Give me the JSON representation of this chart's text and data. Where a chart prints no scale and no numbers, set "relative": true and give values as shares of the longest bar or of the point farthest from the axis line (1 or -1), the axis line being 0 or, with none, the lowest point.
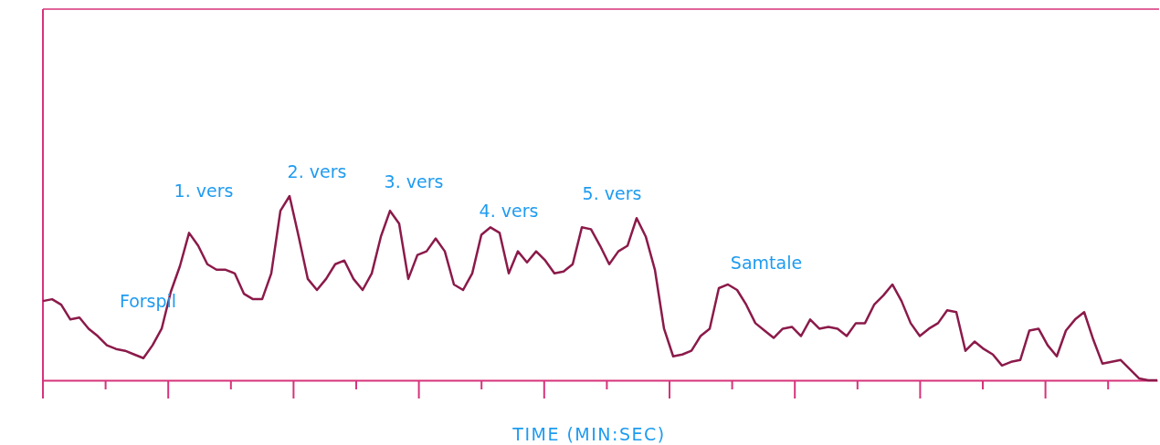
{
  "chart_data": {
    "type": "line",
    "relative": true,
    "xlabel": "TIME (MIN:SEC)",
    "color": "#8b1a4a",
    "categories": [
      null,
      null,
      null,
      null,
      null,
      null,
      null,
      null,
      null,
      null,
      null,
      null,
      null,
      null,
      null,
      null,
      null,
      null,
      null,
      null,
      null,
      null,
      null,
      null,
      null,
      null,
      null,
      null,
      null,
      null,
      null,
      null,
      null,
      null,
      null,
      null,
      null,
      null,
      null,
      null,
      null,
      null,
      null,
      null,
      null,
      null,
      null,
      null,
      null,
      null,
      null,
      null,
      null,
      null,
      null,
      null,
      null,
      null,
      null,
      null,
      null,
      null,
      null,
      null,
      null,
      null,
      null,
      null,
      null,
      null,
      null,
      null,
      null,
      null,
      null,
      null,
      null,
      null,
      null,
      null,
      null,
      null,
      null,
      null,
      null,
      null,
      null,
      null,
      null,
      null,
      null,
      null,
      null,
      null,
      null,
      null,
      null,
      null,
      null,
      null,
      null,
      null,
      null,
      null,
      null,
      null,
      null,
      null,
      null,
      null,
      null,
      null,
      null,
      null,
      null,
      null,
      null,
      null,
      null,
      null,
      null,
      null,
      null
    ],
    "values": [
      0.43,
      0.44,
      0.41,
      0.33,
      0.34,
      0.28,
      0.24,
      0.19,
      0.17,
      0.16,
      0.14,
      0.12,
      0.19,
      0.28,
      0.48,
      0.62,
      0.8,
      0.73,
      0.63,
      0.6,
      0.6,
      0.58,
      0.47,
      0.44,
      0.44,
      0.58,
      0.92,
      1,
      0.78,
      0.55,
      0.49,
      0.55,
      0.63,
      0.65,
      0.55,
      0.49,
      0.58,
      0.78,
      0.92,
      0.85,
      0.55,
      0.68,
      0.7,
      0.77,
      0.7,
      0.52,
      0.49,
      0.58,
      0.79,
      0.83,
      0.8,
      0.58,
      0.7,
      0.64,
      0.7,
      0.65,
      0.58,
      0.59,
      0.63,
      0.83,
      0.82,
      0.73,
      0.63,
      0.7,
      0.73,
      0.88,
      0.78,
      0.6,
      0.28,
      0.13,
      0.14,
      0.16,
      0.24,
      0.28,
      0.5,
      0.52,
      0.49,
      0.41,
      0.31,
      0.27,
      0.23,
      0.28,
      0.29,
      0.24,
      0.33,
      0.28,
      0.29,
      0.28,
      0.24,
      0.31,
      0.31,
      0.41,
      0.46,
      0.52,
      0.43,
      0.31,
      0.24,
      0.28,
      0.31,
      0.38,
      0.37,
      0.16,
      0.21,
      0.17,
      0.14,
      0.08,
      0.1,
      0.11,
      0.27,
      0.28,
      0.19,
      0.13,
      0.27,
      0.33,
      0.37,
      0.22,
      0.09,
      0.1,
      0.11,
      0.06,
      0.01,
      0,
      0
    ],
    "annotations": [
      "Forspil",
      "1. vers",
      "2. vers",
      "3. vers",
      "4. vers",
      "5. vers",
      "Samtale"
    ]
  }
}
